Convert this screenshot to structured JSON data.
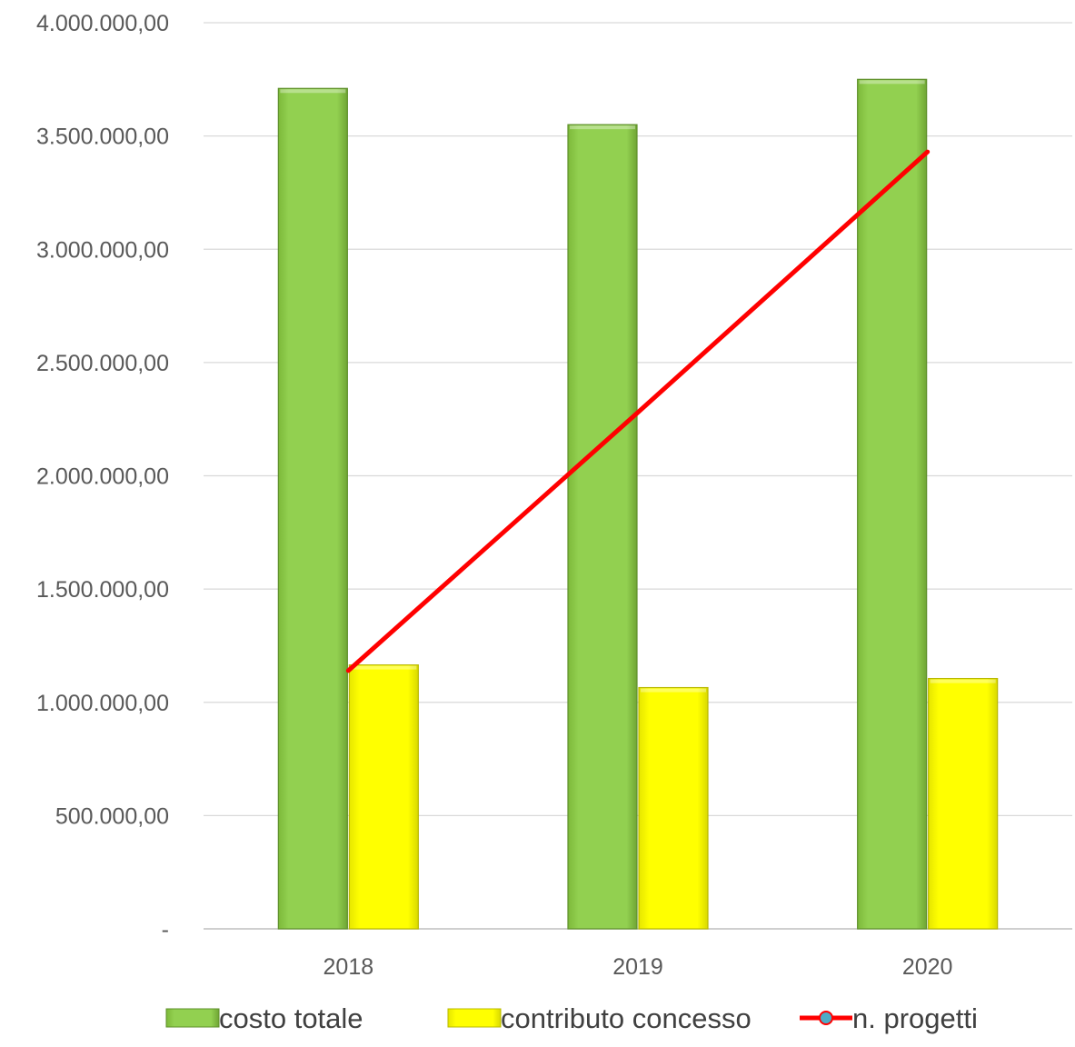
{
  "chart_data": {
    "type": "bar",
    "categories": [
      "2018",
      "2019",
      "2020"
    ],
    "series": [
      {
        "name": "costo totale",
        "kind": "bar",
        "color": "#92D050",
        "values": [
          3710000,
          3550000,
          3750000
        ]
      },
      {
        "name": "contributo concesso",
        "kind": "bar",
        "color": "#FFFF00",
        "values": [
          1165000,
          1065000,
          1105000
        ]
      },
      {
        "name": "n. progetti",
        "kind": "line",
        "color": "#FF0000",
        "marker_color": "#4BACC6",
        "values": [
          1140000,
          2280000,
          3430000
        ]
      }
    ],
    "y_ticks": [
      "-",
      "500.000,00",
      "1.000.000,00",
      "1.500.000,00",
      "2.000.000,00",
      "2.500.000,00",
      "3.000.000,00",
      "3.500.000,00",
      "4.000.000,00"
    ],
    "ylim": [
      0,
      4000000
    ],
    "grid": true,
    "legend_position": "bottom"
  }
}
